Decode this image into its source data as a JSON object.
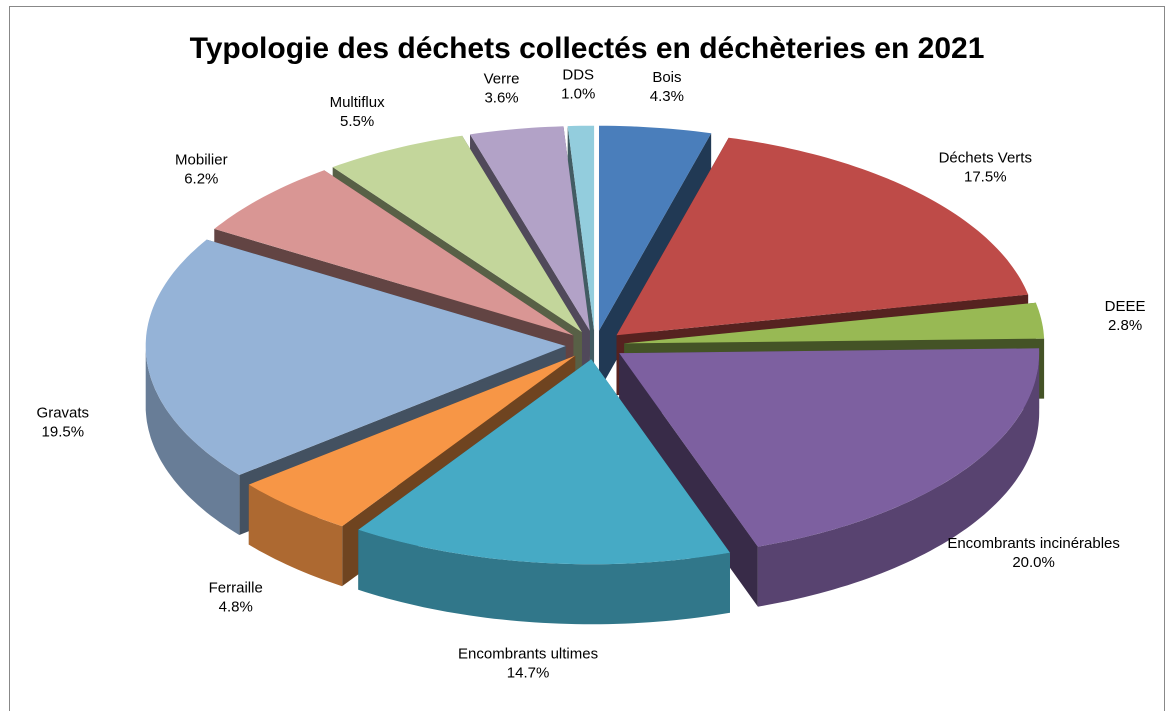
{
  "chart_data": {
    "type": "pie3d",
    "title": "Typologie des déchets collectés en déchèteries en 2021",
    "categories": [
      "Bois",
      "Déchets Verts",
      "DEEE",
      "Encombrants incinérables",
      "Encombrants ultimes",
      "Ferraille",
      "Gravats",
      "Mobilier",
      "Multiflux",
      "Verre",
      "DDS"
    ],
    "values": [
      4.3,
      17.5,
      2.8,
      20.0,
      14.7,
      4.8,
      19.5,
      6.2,
      5.5,
      3.6,
      1.0
    ],
    "value_labels": [
      "4.3%",
      "17.5%",
      "2.8%",
      "20.0%",
      "14.7%",
      "4.8%",
      "19.5%",
      "6.2%",
      "5.5%",
      "3.6%",
      "1.0%"
    ],
    "colors": [
      "#4a7ebb",
      "#be4b48",
      "#98b954",
      "#7d60a0",
      "#46aac5",
      "#f79646",
      "#95b3d7",
      "#d99694",
      "#c3d69b",
      "#b2a2c7",
      "#93cddd"
    ]
  }
}
